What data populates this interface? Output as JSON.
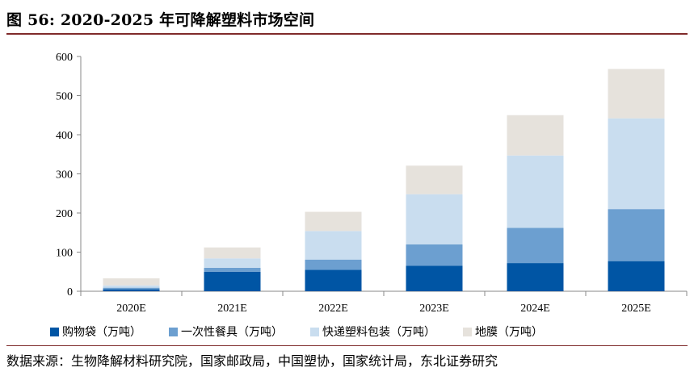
{
  "title": "图 56:  2020-2025 年可降解塑料市场空间",
  "source": "数据来源：生物降解材料研究院，国家邮政局，中国塑协，国家统计局，东北证券研究",
  "chart_data": {
    "type": "bar",
    "stacked": true,
    "categories": [
      "2020E",
      "2021E",
      "2022E",
      "2023E",
      "2024E",
      "2025E"
    ],
    "ylim": [
      0,
      600
    ],
    "yticks": [
      0,
      100,
      200,
      300,
      400,
      500,
      600
    ],
    "series": [
      {
        "name": "购物袋（万吨）",
        "color": "#0055a4",
        "values": [
          5,
          50,
          55,
          65,
          72,
          77
        ]
      },
      {
        "name": "一次性餐具（万吨）",
        "color": "#6c9fd0",
        "values": [
          4,
          10,
          26,
          55,
          90,
          133
        ]
      },
      {
        "name": "快递塑料包装（万吨）",
        "color": "#c9ddef",
        "values": [
          6,
          24,
          73,
          128,
          185,
          232
        ]
      },
      {
        "name": "地膜（万吨）",
        "color": "#e6e2dc",
        "values": [
          18,
          28,
          49,
          73,
          103,
          126
        ]
      }
    ],
    "grid": false,
    "legend": "bottom"
  }
}
